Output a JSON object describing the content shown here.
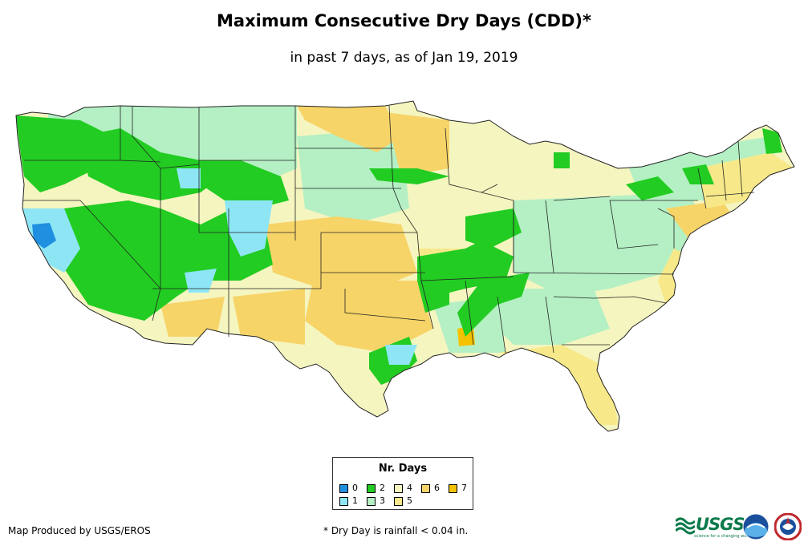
{
  "title": "Maximum Consecutive Dry Days (CDD)*",
  "subtitle": "in past 7 days, as of Jan 19, 2019",
  "legend": {
    "title": "Nr. Days",
    "items": [
      {
        "label": "0",
        "color": "#1f8fe0"
      },
      {
        "label": "1",
        "color": "#8ee6f5"
      },
      {
        "label": "2",
        "color": "#22cc22"
      },
      {
        "label": "3",
        "color": "#b4f0c4"
      },
      {
        "label": "4",
        "color": "#f5f5c0"
      },
      {
        "label": "5",
        "color": "#f7e98a"
      },
      {
        "label": "6",
        "color": "#f7d468"
      },
      {
        "label": "7",
        "color": "#f5c200"
      }
    ]
  },
  "credit": "Map Produced by USGS/EROS",
  "footnote": "* Dry Day is rainfall < 0.04 in.",
  "logos": {
    "usgs": "USGS",
    "usgs_tagline": "science for a changing world",
    "noaa": "noaa-logo",
    "nws": "nws-logo"
  }
}
